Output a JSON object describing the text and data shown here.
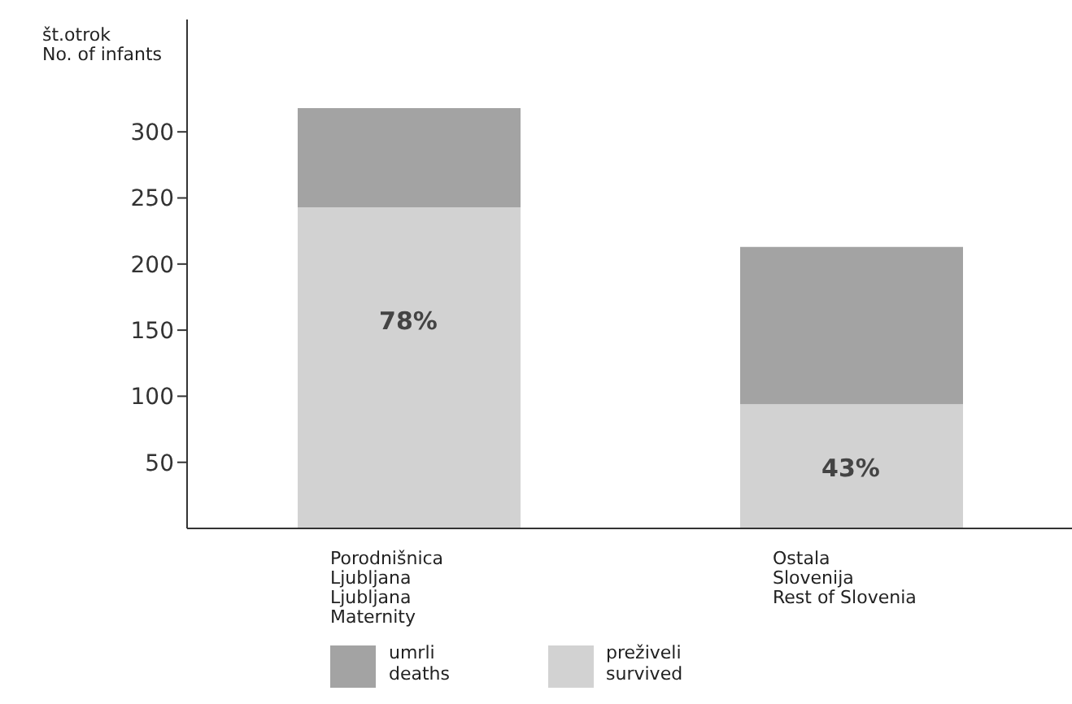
{
  "chart_data": {
    "type": "bar",
    "stacked": true,
    "ylabel": "št.otrok\nNo. of infants",
    "categories": [
      "Porodnišnica\nLjubljana\nLjubljana\nMaternity",
      "Ostala\nSlovenija\nRest of Slovenia"
    ],
    "series": [
      {
        "name": "preživeli\nsurvived",
        "color": "#d2d2d2",
        "values": [
          243,
          94
        ]
      },
      {
        "name": "umrli\ndeaths",
        "color": "#a3a3a3",
        "values": [
          75,
          119
        ]
      }
    ],
    "ylim": [
      0,
      385
    ],
    "yticks": [
      50,
      100,
      150,
      200,
      250,
      300
    ],
    "grid": false,
    "legend": "bottom",
    "annotations": [
      "78%",
      "43%"
    ]
  }
}
